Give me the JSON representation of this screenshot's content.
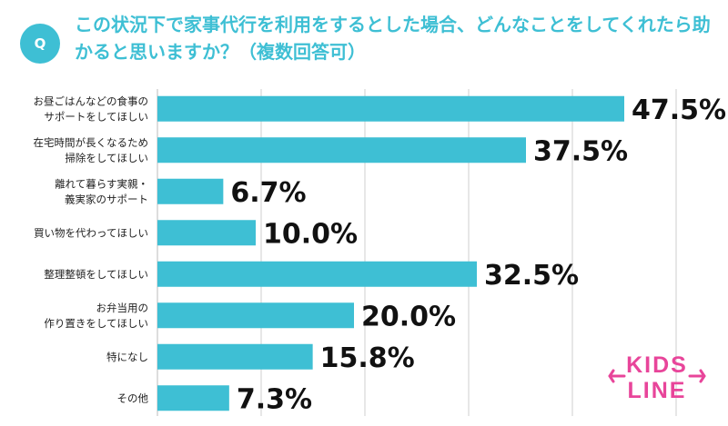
{
  "header": {
    "badge": "Q",
    "question": "この状況下で家事代行を利用をするとした場合、どんなことをしてくれたら助かると思いますか？（複数回答可）"
  },
  "chart_data": {
    "type": "bar",
    "orientation": "horizontal",
    "title": "この状況下で家事代行を利用をするとした場合、どんなことをしてくれたら助かると思いますか？（複数回答可）",
    "categories": [
      [
        "お昼ごはんなどの食事の",
        "サポートをしてほしい"
      ],
      [
        "在宅時間が長くなるため",
        "掃除をしてほしい"
      ],
      [
        "離れて暮らす実親・",
        "義実家のサポート"
      ],
      [
        "買い物を代わってほしい"
      ],
      [
        "整理整頓をしてほしい"
      ],
      [
        "お弁当用の",
        "作り置きをしてほしい"
      ],
      [
        "特になし"
      ],
      [
        "その他"
      ]
    ],
    "values": [
      47.5,
      37.5,
      6.7,
      10.0,
      32.5,
      20.0,
      15.8,
      7.3
    ],
    "value_labels": [
      "47.5%",
      "37.5%",
      "6.7%",
      "10.0%",
      "32.5%",
      "20.0%",
      "15.8%",
      "7.3%"
    ],
    "unit": "%",
    "xlim": [
      0,
      60
    ],
    "grid": true,
    "bar_color": "#3ebfd4",
    "grid_color": "#cfcfcf"
  },
  "logo": {
    "line1": "KIDS",
    "line2": "LINE",
    "color": "#e8459a"
  }
}
